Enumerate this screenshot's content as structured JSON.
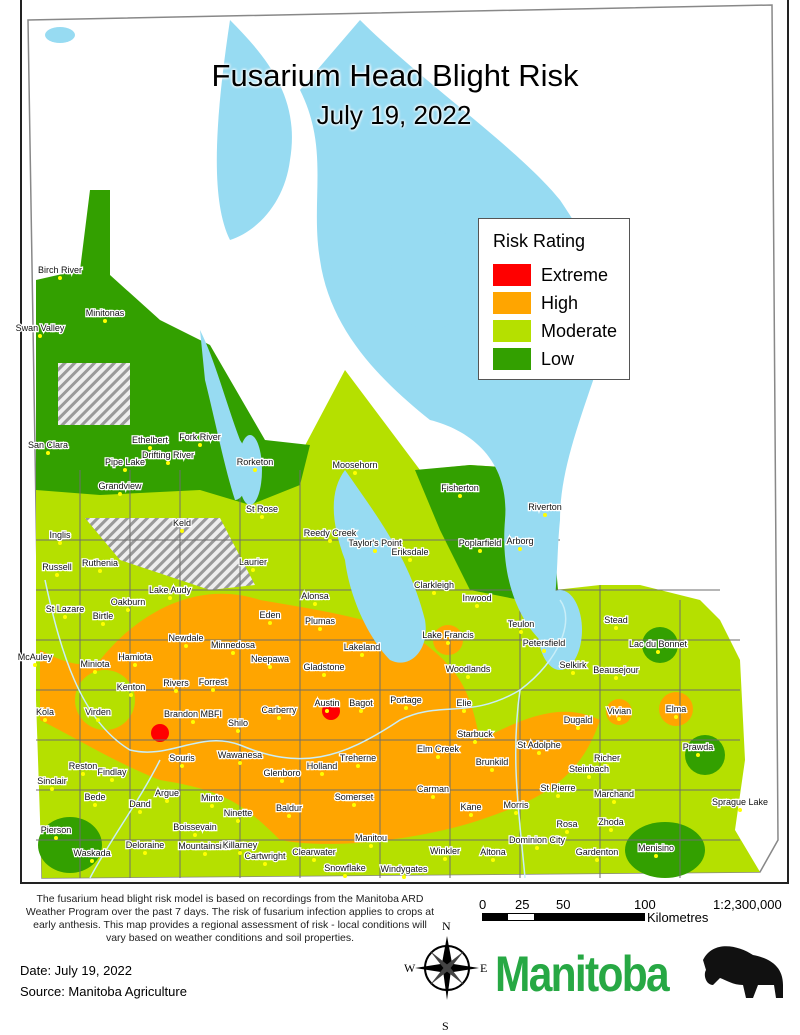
{
  "title": "Fusarium Head Blight Risk",
  "subtitle": "July 19, 2022",
  "legend": {
    "title": "Risk Rating",
    "items": [
      {
        "label": "Extreme",
        "color": "#ff0000"
      },
      {
        "label": "High",
        "color": "#ffa500"
      },
      {
        "label": "Moderate",
        "color": "#b5e000"
      },
      {
        "label": "Low",
        "color": "#33a000"
      }
    ]
  },
  "colors": {
    "water": "#97dbf2",
    "station": "#ffff00",
    "boundary": "#6e6e6e",
    "unavailable_hatch": "#9a9a9a"
  },
  "stations": [
    "Birch River",
    "Swan Valley",
    "Minitonas",
    "Ethelbert",
    "Fork River",
    "San Clara",
    "Pipe Lake",
    "Drifting River",
    "Rorketon",
    "Grandview",
    "Moosehorn",
    "Fisherton",
    "Riverton",
    "St Rose",
    "Keld",
    "Inglis",
    "Reedy Creek",
    "Poplarfield",
    "Arborg",
    "Taylor's Point",
    "Eriksdale",
    "Ruthenia",
    "Laurier",
    "Russell",
    "Lake Audy",
    "Alonsa",
    "Oakburn",
    "Clarkleigh",
    "Inwood",
    "St Lazare",
    "Birtle",
    "Eden",
    "Plumas",
    "Newdale",
    "Stead",
    "Lake Francis",
    "Teulon",
    "Minnedosa",
    "Petersfield",
    "Lac du Bonnet",
    "McAuley",
    "Hamiota",
    "Miniota",
    "Lakeland",
    "Neepawa",
    "Gladstone",
    "Woodlands",
    "Selkirk",
    "Beausejour",
    "Kenton",
    "Rivers",
    "Forrest",
    "Austin",
    "Bagot",
    "Portage",
    "Elie",
    "Vivian",
    "Elma",
    "Kola",
    "Virden",
    "Brandon MBFI",
    "Carberry",
    "Shilo",
    "Dugald",
    "Starbuck",
    "St Adolphe",
    "Prawda",
    "Elm Creek",
    "Richer",
    "Reston",
    "Findlay",
    "Souris",
    "Wawanesa",
    "Glenboro",
    "Holland",
    "Treherne",
    "Brunkild",
    "Steinbach",
    "Sinclair",
    "Carman",
    "St Pierre",
    "Marchand",
    "Bede",
    "Dand",
    "Argue",
    "Minto",
    "Sprague Lake",
    "Somerset",
    "Baldur",
    "Kane",
    "Morris",
    "Ninette",
    "Rosa",
    "Zhoda",
    "Pierson",
    "Boissevain",
    "Manitou",
    "Waskada",
    "Deloraine",
    "Mountainside",
    "Killarney",
    "Cartwright",
    "Clearwater",
    "Dominion City",
    "Winkler",
    "Altona",
    "Gardenton",
    "Menisino",
    "Snowflake",
    "Windygates"
  ],
  "note": "The fusarium head blight risk model is based on recordings from the Manitoba ARD Weather Program over the past 7 days. The risk of fusarium infection applies to crops at early anthesis. This map provides a regional assessment of risk - local conditions will vary based on weather conditions and soil properties.",
  "date": "Date: July 19, 2022",
  "source": "Source: Manitoba Agriculture",
  "scale": {
    "ticks": [
      "0",
      "25",
      "50",
      "100"
    ],
    "unit": "Kilometres",
    "ratio": "1:2,300,000"
  },
  "compass": {
    "n": "N",
    "e": "E",
    "s": "S",
    "w": "W"
  },
  "logo": "Manitoba"
}
